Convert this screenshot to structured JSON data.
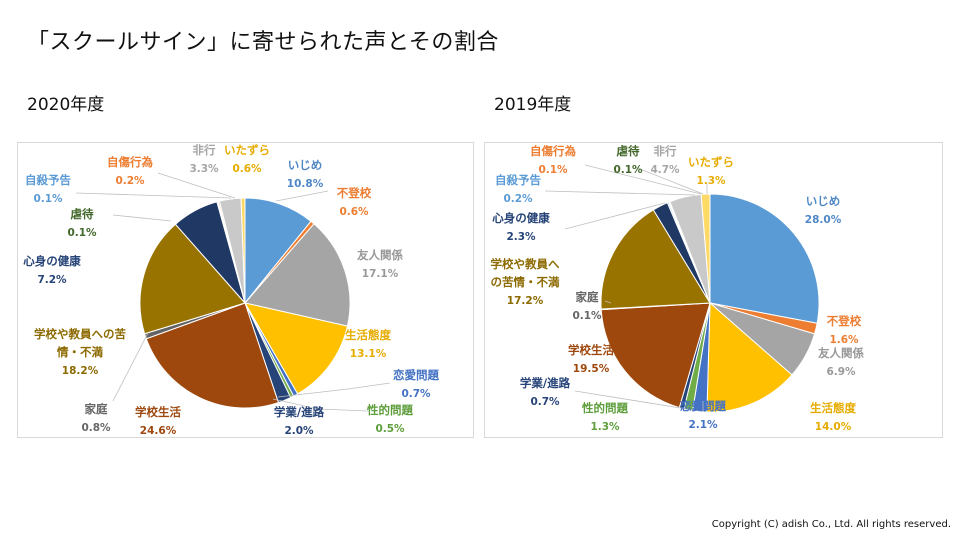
{
  "slide": {
    "title": "「スクールサイン」に寄せられた声とその割合",
    "copyright": "Copyright (C) adish Co., Ltd. All rights reserved."
  },
  "chart_data": [
    {
      "type": "pie",
      "title": "2020年度",
      "unit": "%",
      "legend": "none",
      "slices": [
        {
          "label": "いじめ",
          "value": 10.8,
          "display": "10.8%",
          "color": "#5b9bd5",
          "label_color": "#4f87c6"
        },
        {
          "label": "不登校",
          "value": 0.6,
          "display": "0.6%",
          "color": "#ed7d31",
          "label_color": "#ed7d31"
        },
        {
          "label": "友人関係",
          "value": 17.1,
          "display": "17.1%",
          "color": "#a5a5a5",
          "label_color": "#999999"
        },
        {
          "label": "生活態度",
          "value": 13.1,
          "display": "13.1%",
          "color": "#ffc000",
          "label_color": "#e6ac00"
        },
        {
          "label": "恋愛問題",
          "value": 0.7,
          "display": "0.7%",
          "color": "#4472c4",
          "label_color": "#4472c4"
        },
        {
          "label": "性的問題",
          "value": 0.5,
          "display": "0.5%",
          "color": "#70ad47",
          "label_color": "#5f9e3c"
        },
        {
          "label": "学業/進路",
          "value": 2.0,
          "display": "2.0%",
          "color": "#264478",
          "label_color": "#264478"
        },
        {
          "label": "学校生活",
          "value": 24.6,
          "display": "24.6%",
          "color": "#9e480e",
          "label_color": "#9e480e"
        },
        {
          "label": "家庭",
          "value": 0.8,
          "display": "0.8%",
          "color": "#636363",
          "label_color": "#666666"
        },
        {
          "label": "学校や教員への苦情・不満",
          "value": 18.2,
          "display": "18.2%",
          "color": "#997300",
          "label_color": "#8c6a00"
        },
        {
          "label": "心身の健康",
          "value": 7.2,
          "display": "7.2%",
          "color": "#1f3864",
          "label_color": "#264478"
        },
        {
          "label": "虐待",
          "value": 0.1,
          "display": "0.1%",
          "color": "#43682b",
          "label_color": "#43682b"
        },
        {
          "label": "自殺予告",
          "value": 0.1,
          "display": "0.1%",
          "color": "#6fa8dc",
          "label_color": "#5b9bd5"
        },
        {
          "label": "自傷行為",
          "value": 0.2,
          "display": "0.2%",
          "color": "#f4a582",
          "label_color": "#ed7d31"
        },
        {
          "label": "非行",
          "value": 3.3,
          "display": "3.3%",
          "color": "#c9c9c9",
          "label_color": "#a5a5a5"
        },
        {
          "label": "いたずら",
          "value": 0.6,
          "display": "0.6%",
          "color": "#ffd966",
          "label_color": "#e6ac00"
        }
      ]
    },
    {
      "type": "pie",
      "title": "2019年度",
      "unit": "%",
      "legend": "none",
      "slices": [
        {
          "label": "いじめ",
          "value": 28.0,
          "display": "28.0%",
          "color": "#5b9bd5",
          "label_color": "#4f87c6"
        },
        {
          "label": "不登校",
          "value": 1.6,
          "display": "1.6%",
          "color": "#ed7d31",
          "label_color": "#ed7d31"
        },
        {
          "label": "友人関係",
          "value": 6.9,
          "display": "6.9%",
          "color": "#a5a5a5",
          "label_color": "#999999"
        },
        {
          "label": "生活態度",
          "value": 14.0,
          "display": "14.0%",
          "color": "#ffc000",
          "label_color": "#e6ac00"
        },
        {
          "label": "恋愛問題",
          "value": 2.1,
          "display": "2.1%",
          "color": "#4472c4",
          "label_color": "#4472c4"
        },
        {
          "label": "性的問題",
          "value": 1.3,
          "display": "1.3%",
          "color": "#70ad47",
          "label_color": "#5f9e3c"
        },
        {
          "label": "学業/進路",
          "value": 0.7,
          "display": "0.7%",
          "color": "#264478",
          "label_color": "#264478"
        },
        {
          "label": "学校生活",
          "value": 19.5,
          "display": "19.5%",
          "color": "#9e480e",
          "label_color": "#9e480e"
        },
        {
          "label": "家庭",
          "value": 0.1,
          "display": "0.1%",
          "color": "#636363",
          "label_color": "#666666"
        },
        {
          "label": "学校や教員への苦情・不満",
          "value": 17.2,
          "display": "17.2%",
          "color": "#997300",
          "label_color": "#8c6a00"
        },
        {
          "label": "心身の健康",
          "value": 2.3,
          "display": "2.3%",
          "color": "#1f3864",
          "label_color": "#264478"
        },
        {
          "label": "自殺予告",
          "value": 0.2,
          "display": "0.2%",
          "color": "#6fa8dc",
          "label_color": "#5b9bd5"
        },
        {
          "label": "自傷行為",
          "value": 0.1,
          "display": "0.1%",
          "color": "#f4a582",
          "label_color": "#ed7d31"
        },
        {
          "label": "虐待",
          "value": 0.1,
          "display": "0.1%",
          "color": "#43682b",
          "label_color": "#43682b"
        },
        {
          "label": "非行",
          "value": 4.7,
          "display": "4.7%",
          "color": "#c9c9c9",
          "label_color": "#a5a5a5"
        },
        {
          "label": "いたずら",
          "value": 1.3,
          "display": "1.3%",
          "color": "#ffd966",
          "label_color": "#e6ac00"
        }
      ]
    }
  ]
}
